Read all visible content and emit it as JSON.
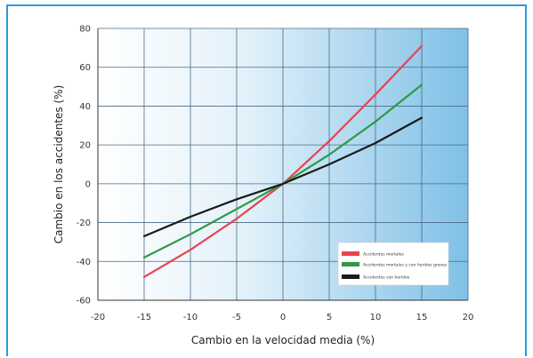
{
  "chart_data": {
    "type": "line",
    "xlabel": "Cambio en la velocidad media (%)",
    "ylabel": "Cambio en los accidentes (%)",
    "xlim": [
      -20,
      20
    ],
    "ylim": [
      -60,
      80
    ],
    "x_ticks": [
      -20,
      -15,
      -10,
      -5,
      0,
      5,
      10,
      15,
      20
    ],
    "y_ticks": [
      80,
      60,
      40,
      20,
      0,
      -20,
      -40,
      -60
    ],
    "grid": true,
    "legend_position": "lower-right",
    "series": [
      {
        "name": "Accidentes mortales",
        "color": "#e8434f",
        "x": [
          -15,
          -10,
          -5,
          0,
          5,
          10,
          15
        ],
        "y": [
          -48,
          -34,
          -18,
          0,
          22,
          46,
          71
        ]
      },
      {
        "name": "Accidentes mortales y con heridos graves",
        "color": "#2e9a46",
        "x": [
          -15,
          -10,
          -5,
          0,
          5,
          10,
          15
        ],
        "y": [
          -38,
          -26,
          -13,
          0,
          15,
          32,
          51
        ]
      },
      {
        "name": "Accidentes con heridos",
        "color": "#1a1a1a",
        "x": [
          -15,
          -10,
          -5,
          0,
          5,
          10,
          15
        ],
        "y": [
          -27,
          -17,
          -8,
          0,
          10,
          21,
          34
        ]
      }
    ]
  }
}
